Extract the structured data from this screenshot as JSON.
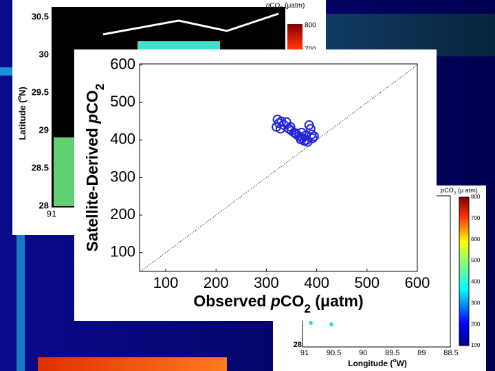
{
  "chart_data": [
    {
      "type": "scatter",
      "xlabel": [
        "Observed ",
        "p",
        "CO",
        "2",
        " (μatm)"
      ],
      "ylabel": [
        "Satellite-Derived ",
        "p",
        "CO",
        "2"
      ],
      "x": [
        322,
        325,
        320,
        330,
        335,
        340,
        345,
        350,
        355,
        360,
        365,
        370,
        372,
        378,
        380,
        382,
        385,
        388,
        390,
        392,
        395,
        375,
        368,
        358,
        348,
        328
      ],
      "y": [
        455,
        445,
        435,
        450,
        440,
        448,
        430,
        425,
        420,
        415,
        410,
        420,
        405,
        412,
        400,
        395,
        440,
        430,
        415,
        405,
        410,
        398,
        402,
        418,
        435,
        430
      ],
      "color": "#2424d8",
      "xlim": [
        48,
        600
      ],
      "ylim": [
        50,
        603
      ],
      "xticks": [
        100,
        200,
        300,
        400,
        500,
        600
      ],
      "yticks": [
        100,
        200,
        300,
        400,
        500,
        600
      ],
      "one_to_one_line": true
    },
    {
      "type": "map",
      "ylabel": [
        "Latitude (",
        "o",
        "N)"
      ],
      "colorbar_label": [
        "p",
        "CO",
        "2",
        " (μatm)"
      ],
      "ylim": [
        28,
        30.5
      ],
      "yticks": [
        28,
        28.5,
        29,
        29.5,
        30,
        30.5
      ],
      "xlim": [
        91,
        88.5
      ],
      "xticks": [
        91
      ],
      "clim": [
        100,
        800
      ],
      "colorbar_ticks": [
        700,
        800
      ]
    },
    {
      "type": "map",
      "xlabel": [
        "Longitude (",
        "o",
        "W)"
      ],
      "colorbar_label": [
        "p",
        "CO",
        "2",
        " (μ atm)"
      ],
      "ylim": [
        28,
        30.5
      ],
      "yticks": [
        28
      ],
      "xlim": [
        91,
        88.5
      ],
      "xticks": [
        91,
        90.5,
        90,
        89.5,
        89,
        88.5
      ],
      "clim": [
        100,
        800
      ],
      "colorbar_ticks": [
        100,
        200,
        300,
        400,
        500,
        600,
        700,
        800
      ]
    }
  ]
}
